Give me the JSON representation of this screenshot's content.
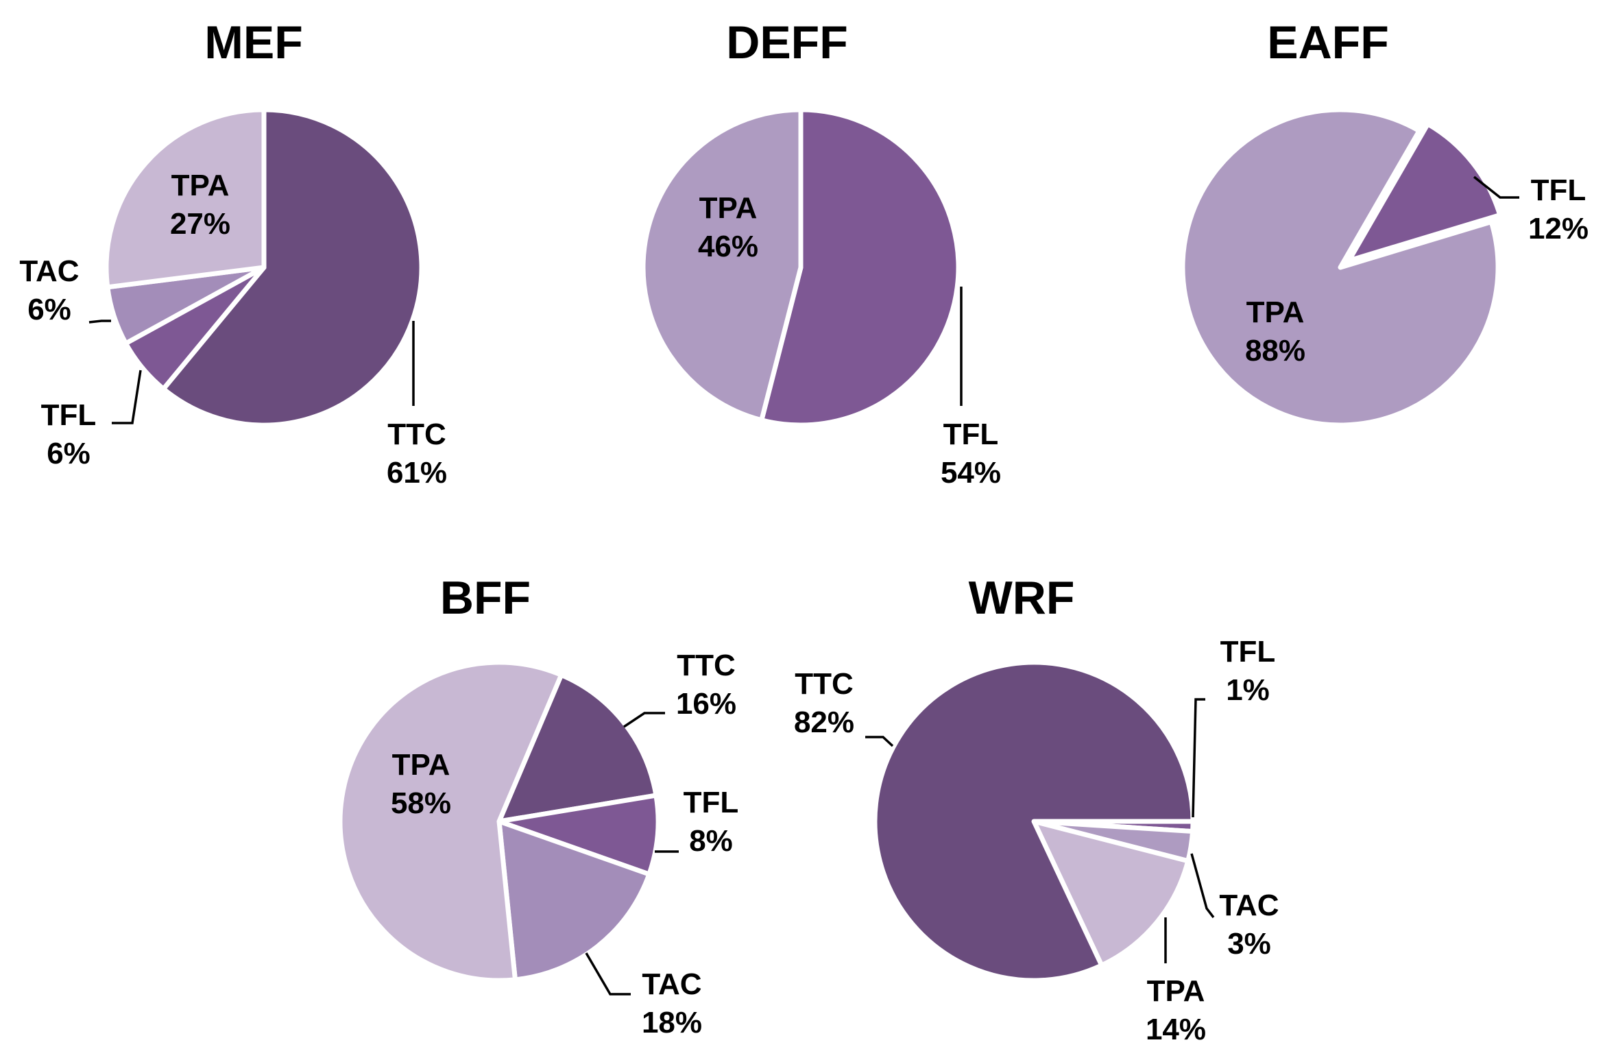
{
  "chart_data": [
    {
      "type": "pie",
      "title": "MEF",
      "slices": [
        {
          "label": "TTC",
          "value": 61,
          "text": "61%",
          "color": "#6a4c7d"
        },
        {
          "label": "TFL",
          "value": 6,
          "text": "6%",
          "color": "#7e5894"
        },
        {
          "label": "TAC",
          "value": 6,
          "text": "6%",
          "color": "#a38db9"
        },
        {
          "label": "TPA",
          "value": 27,
          "text": "27%",
          "color": "#c8b8d3"
        }
      ]
    },
    {
      "type": "pie",
      "title": "DEFF",
      "slices": [
        {
          "label": "TFL",
          "value": 54,
          "text": "54%",
          "color": "#7e5894"
        },
        {
          "label": "TPA",
          "value": 46,
          "text": "46%",
          "color": "#ae9bc1"
        }
      ]
    },
    {
      "type": "pie",
      "title": "EAFF",
      "slices": [
        {
          "label": "TFL",
          "value": 12,
          "text": "12%",
          "color": "#7e5894"
        },
        {
          "label": "TPA",
          "value": 88,
          "text": "88%",
          "color": "#ae9bc1"
        }
      ]
    },
    {
      "type": "pie",
      "title": "BFF",
      "slices": [
        {
          "label": "TTC",
          "value": 16,
          "text": "16%",
          "color": "#6a4c7d"
        },
        {
          "label": "TFL",
          "value": 8,
          "text": "8%",
          "color": "#7e5894"
        },
        {
          "label": "TAC",
          "value": 18,
          "text": "18%",
          "color": "#a38db9"
        },
        {
          "label": "TPA",
          "value": 58,
          "text": "58%",
          "color": "#c8b8d3"
        }
      ]
    },
    {
      "type": "pie",
      "title": "WRF",
      "slices": [
        {
          "label": "TFL",
          "value": 1,
          "text": "1%",
          "color": "#7e5894"
        },
        {
          "label": "TAC",
          "value": 3,
          "text": "3%",
          "color": "#ae9bc1"
        },
        {
          "label": "TPA",
          "value": 14,
          "text": "14%",
          "color": "#c8b8d3"
        },
        {
          "label": "TTC",
          "value": 82,
          "text": "82%",
          "color": "#6a4c7d"
        }
      ]
    }
  ]
}
